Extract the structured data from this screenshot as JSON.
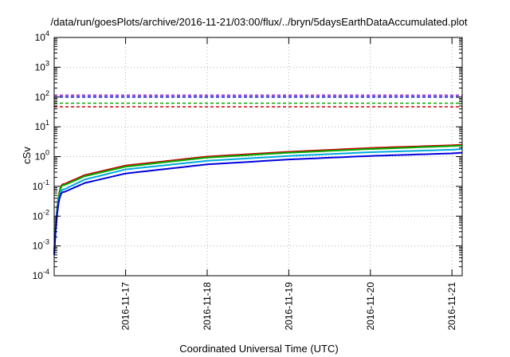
{
  "chart_data": {
    "type": "line",
    "title": "/data/run/goesPlots/archive/2016-11-21/03:00/flux/../bryn/5daysEarthDataAccumulated.plot",
    "xlabel": "Coordinated Universal Time (UTC)",
    "ylabel": "cSv",
    "y_scale": "log",
    "ylim": [
      0.0001,
      10000
    ],
    "xlim": [
      "2016-11-16 03:00",
      "2016-11-21 03:00"
    ],
    "grid": true,
    "x_ticks": [
      "2016-11-17",
      "2016-11-18",
      "2016-11-19",
      "2016-11-20",
      "2016-11-21"
    ],
    "y_ticks": [
      {
        "value": 0.0001,
        "base": "10",
        "exp": "-4"
      },
      {
        "value": 0.001,
        "base": "10",
        "exp": "-3"
      },
      {
        "value": 0.01,
        "base": "10",
        "exp": "-2"
      },
      {
        "value": 0.1,
        "base": "10",
        "exp": "-1"
      },
      {
        "value": 1,
        "base": "10",
        "exp": "0"
      },
      {
        "value": 10,
        "base": "10",
        "exp": "1"
      },
      {
        "value": 100,
        "base": "10",
        "exp": "2"
      },
      {
        "value": 1000,
        "base": "10",
        "exp": "3"
      },
      {
        "value": 10000,
        "base": "10",
        "exp": "4"
      }
    ],
    "x": [
      "2016-11-16 03:00",
      "2016-11-16 06:00",
      "2016-11-16 12:00",
      "2016-11-17 00:00",
      "2016-11-18 00:00",
      "2016-11-19 00:00",
      "2016-11-20 00:00",
      "2016-11-21 00:00",
      "2016-11-21 03:00"
    ],
    "series": [
      {
        "color": "#cc0000",
        "values": [
          0.0006,
          0.12,
          0.24,
          0.5,
          1.0,
          1.45,
          1.95,
          2.4,
          2.5
        ]
      },
      {
        "color": "#00aa00",
        "values": [
          0.0006,
          0.11,
          0.22,
          0.46,
          0.93,
          1.35,
          1.8,
          2.25,
          2.35
        ]
      },
      {
        "color": "#00aadd",
        "values": [
          0.0005,
          0.08,
          0.17,
          0.37,
          0.72,
          1.05,
          1.4,
          1.7,
          1.8
        ]
      },
      {
        "color": "#0000dd",
        "values": [
          0.0005,
          0.065,
          0.13,
          0.27,
          0.55,
          0.8,
          1.05,
          1.28,
          1.35
        ]
      }
    ],
    "threshold_lines": [
      {
        "color": "#7700cc",
        "value": 115
      },
      {
        "color": "#0000dd",
        "value": 100
      },
      {
        "color": "#00aa00",
        "value": 62
      },
      {
        "color": "#cc0000",
        "value": 47
      }
    ]
  }
}
